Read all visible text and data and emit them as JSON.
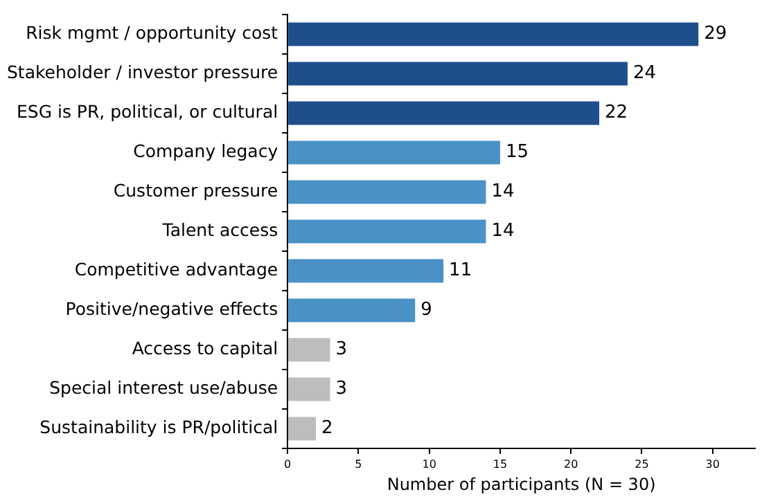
{
  "chart_data": {
    "type": "bar",
    "orientation": "horizontal",
    "xlabel": "Number of participants (N = 30)",
    "categories": [
      "Risk mgmt / opportunity cost",
      "Stakeholder / investor pressure",
      "ESG is PR, political, or cultural",
      "Company legacy",
      "Customer pressure",
      "Talent access",
      "Competitive advantage",
      "Positive/negative effects",
      "Access to capital",
      "Special interest use/abuse",
      "Sustainability is PR/political"
    ],
    "values": [
      29,
      24,
      22,
      15,
      14,
      14,
      11,
      9,
      3,
      3,
      2
    ],
    "colors": [
      "#1f4e8c",
      "#1f4e8c",
      "#1f4e8c",
      "#4a91c6",
      "#4a91c6",
      "#4a91c6",
      "#4a91c6",
      "#4a91c6",
      "#bdbdbd",
      "#bdbdbd",
      "#bdbdbd"
    ],
    "xlim": [
      0,
      33
    ],
    "xticks": [
      0,
      5,
      10,
      15,
      20,
      25,
      30
    ],
    "grid": false,
    "legend": false,
    "data_labels": true
  }
}
